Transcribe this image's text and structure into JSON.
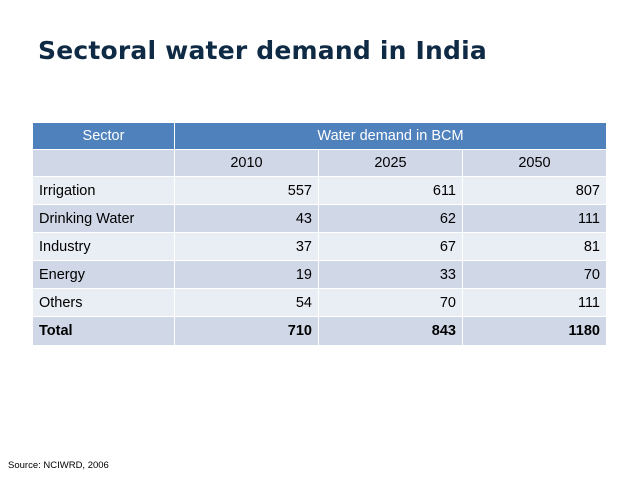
{
  "slide": {
    "title": "Sectoral water demand in India",
    "source": "Source: NCIWRD, 2006"
  },
  "table": {
    "header": {
      "sector": "Sector",
      "demand": "Water demand in BCM"
    },
    "years": [
      "2010",
      "2025",
      "2050"
    ],
    "rows": [
      {
        "sector": "Irrigation",
        "v2010": "557",
        "v2025": "611",
        "v2050": "807"
      },
      {
        "sector": "Drinking Water",
        "v2010": "43",
        "v2025": "62",
        "v2050": "111"
      },
      {
        "sector": "Industry",
        "v2010": "37",
        "v2025": "67",
        "v2050": "81"
      },
      {
        "sector": "Energy",
        "v2010": "19",
        "v2025": "33",
        "v2050": "70"
      },
      {
        "sector": "Others",
        "v2010": "54",
        "v2025": "70",
        "v2050": "111"
      }
    ],
    "total": {
      "sector": "Total",
      "v2010": "710",
      "v2025": "843",
      "v2050": "1180"
    }
  },
  "colors": {
    "title": "#0f2a44",
    "header_bg": "#4f81bd",
    "band_dark": "#d0d8e8",
    "band_light": "#e9edf4"
  }
}
